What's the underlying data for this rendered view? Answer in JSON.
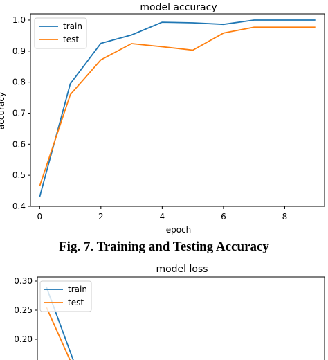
{
  "figure": {
    "caption": "Fig. 7. Training and Testing Accuracy"
  },
  "chart_data": [
    {
      "type": "line",
      "title": "model accuracy",
      "xlabel": "epoch",
      "ylabel": "accuracy",
      "xlim": [
        -0.3,
        9.3
      ],
      "ylim": [
        0.4,
        1.02
      ],
      "xticks": [
        0,
        2,
        4,
        6,
        8
      ],
      "yticks": [
        0.4,
        0.5,
        0.6,
        0.7,
        0.8,
        0.9,
        1.0
      ],
      "ytick_labels": [
        "0.4",
        "0.5",
        "0.6",
        "0.7",
        "0.8",
        "0.9",
        "1.0"
      ],
      "grid": false,
      "legend_position": "top-left",
      "x": [
        0,
        1,
        2,
        3,
        4,
        5,
        6,
        7,
        8,
        9
      ],
      "series": [
        {
          "name": "train",
          "color": "#1f77b4",
          "values": [
            0.43,
            0.795,
            0.925,
            0.952,
            0.993,
            0.991,
            0.986,
            1.0,
            1.0,
            1.0
          ]
        },
        {
          "name": "test",
          "color": "#ff7f0e",
          "values": [
            0.465,
            0.76,
            0.872,
            0.924,
            0.914,
            0.903,
            0.958,
            0.977,
            0.977,
            0.977
          ]
        }
      ]
    },
    {
      "type": "line",
      "title": "model loss",
      "xlabel": "",
      "ylabel": "",
      "xlim": [
        -0.3,
        9.3
      ],
      "ylim": [
        0.0,
        0.305
      ],
      "yticks": [
        0.2,
        0.25,
        0.3
      ],
      "ytick_labels": [
        "0.20",
        "0.25",
        "0.30"
      ],
      "grid": false,
      "legend_position": "top-left",
      "x": [
        0,
        1
      ],
      "series": [
        {
          "name": "train",
          "color": "#1f77b4",
          "values": [
            0.29,
            0.15
          ]
        },
        {
          "name": "test",
          "color": "#ff7f0e",
          "values": [
            0.255,
            0.14
          ]
        }
      ]
    }
  ]
}
